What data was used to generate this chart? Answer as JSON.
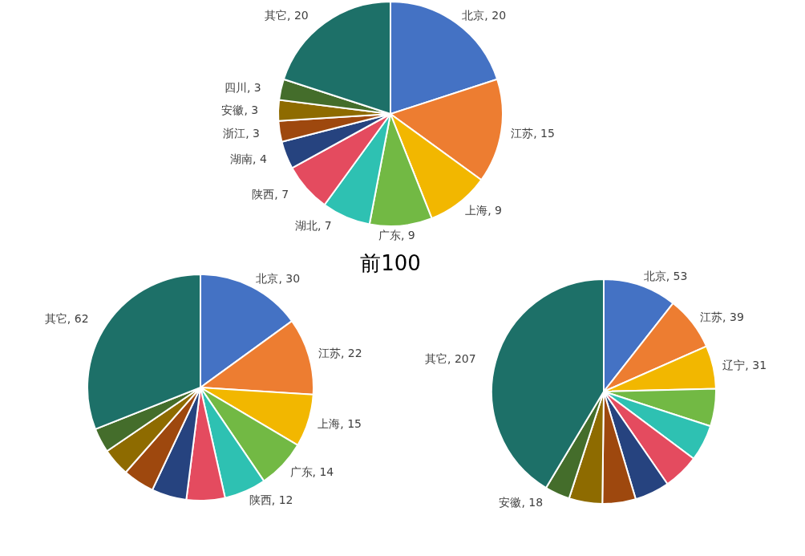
{
  "chart_data": [
    {
      "type": "pie",
      "title": "前100",
      "categories": [
        "北京",
        "江苏",
        "上海",
        "广东",
        "湖北",
        "陕西",
        "湖南",
        "浙江",
        "安徽",
        "四川",
        "其它"
      ],
      "values": [
        20,
        15,
        9,
        9,
        7,
        7,
        4,
        3,
        3,
        3,
        20
      ],
      "colors": [
        "#4472c4",
        "#ed7d31",
        "#f2b700",
        "#72b944",
        "#2ec1b2",
        "#e44b5f",
        "#26437f",
        "#9e480e",
        "#8e6b00",
        "#446d2b",
        "#1d7068"
      ],
      "value_labels": [
        ", 20",
        ", 15",
        ", 9",
        ", 9",
        ", 7",
        ", 7",
        ", 4",
        ", 3",
        ", 3",
        ", 3",
        ", 20"
      ]
    },
    {
      "type": "pie",
      "categories": [
        "北京",
        "江苏",
        "上海",
        "广东",
        "陕西",
        null,
        null,
        null,
        null,
        null,
        "其它"
      ],
      "values": [
        30,
        22,
        15,
        14,
        12,
        11,
        10,
        9,
        8,
        7,
        62
      ],
      "colors": [
        "#4472c4",
        "#ed7d31",
        "#f2b700",
        "#72b944",
        "#2ec1b2",
        "#e44b5f",
        "#26437f",
        "#9e480e",
        "#8e6b00",
        "#446d2b",
        "#1d7068"
      ],
      "value_labels": [
        ", 30",
        ", 22",
        ", 15",
        ", 14",
        ", 12",
        null,
        null,
        null,
        null,
        null,
        ", 62"
      ]
    },
    {
      "type": "pie",
      "categories": [
        "北京",
        "江苏",
        "辽宁",
        null,
        null,
        null,
        null,
        null,
        null,
        "安徽",
        "其它"
      ],
      "values": [
        53,
        39,
        31,
        27,
        26,
        26,
        25,
        24,
        24,
        18,
        207
      ],
      "colors": [
        "#4472c4",
        "#ed7d31",
        "#f2b700",
        "#72b944",
        "#2ec1b2",
        "#e44b5f",
        "#26437f",
        "#9e480e",
        "#8e6b00",
        "#446d2b",
        "#1d7068"
      ],
      "value_labels": [
        ", 53",
        ", 39",
        ", 31",
        null,
        null,
        null,
        null,
        null,
        null,
        ", 18",
        ", 207"
      ]
    }
  ]
}
